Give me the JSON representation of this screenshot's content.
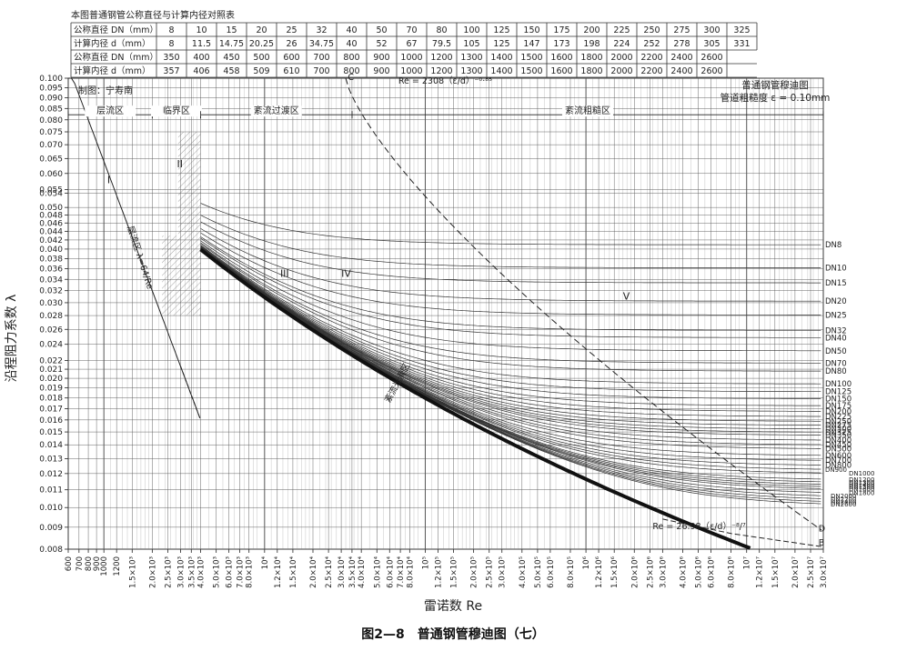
{
  "table": {
    "title": "本图普通钢管公称直径与计算内径对照表",
    "rows": [
      {
        "label": "公称直径 DN（mm）",
        "values": [
          "8",
          "10",
          "15",
          "20",
          "25",
          "32",
          "40",
          "50",
          "70",
          "80",
          "100",
          "125",
          "150",
          "175",
          "200",
          "225",
          "250",
          "275",
          "300",
          "325"
        ]
      },
      {
        "label": "计算内径 d（mm）",
        "values": [
          "8",
          "11.5",
          "14.75",
          "20.25",
          "26",
          "34.75",
          "40",
          "52",
          "67",
          "79.5",
          "105",
          "125",
          "147",
          "173",
          "198",
          "224",
          "252",
          "278",
          "305",
          "331"
        ]
      },
      {
        "label": "公称直径 DN（mm）",
        "values": [
          "350",
          "400",
          "450",
          "500",
          "600",
          "700",
          "800",
          "900",
          "1000",
          "1200",
          "1300",
          "1400",
          "1500",
          "1600",
          "1800",
          "2000",
          "2200",
          "2400",
          "2600",
          ""
        ]
      },
      {
        "label": "计算内径 d（mm）",
        "values": [
          "357",
          "406",
          "458",
          "509",
          "610",
          "700",
          "800",
          "900",
          "1000",
          "1200",
          "1300",
          "1400",
          "1500",
          "1600",
          "1800",
          "2000",
          "2200",
          "2400",
          "2600",
          ""
        ]
      }
    ]
  },
  "chart_data": {
    "type": "line",
    "title": "普通钢管穆迪图",
    "subtitle": "管道粗糙度 ε = 0.10mm",
    "author": "制图：宁寿南",
    "caption": "图2—8　普通钢管穆迪图（七）",
    "xlabel": "雷诺数 Re",
    "ylabel": "沿程阻力系数 λ",
    "x_scale": "log",
    "y_scale": "log",
    "xlim": [
      600,
      30000000
    ],
    "ylim": [
      0.008,
      0.1
    ],
    "grid": true,
    "x_ticks": [
      "600",
      "700",
      "800",
      "900",
      "1000",
      "1200",
      "1.5×10³",
      "2.0×10³",
      "2.5×10³",
      "3.0×10³",
      "3.5×10³",
      "4.0×10³",
      "5.0×10³",
      "6.0×10³",
      "7.0×10³",
      "8.0×10³",
      "10⁴",
      "1.2×10⁴",
      "1.5×10⁴",
      "2.0×10⁴",
      "2.5×10⁴",
      "3.0×10⁴",
      "3.5×10⁴",
      "4.0×10⁴",
      "5.0×10⁴",
      "6.0×10⁴",
      "7.0×10⁴",
      "8.0×10⁴",
      "10⁵",
      "1.2×10⁵",
      "1.5×10⁵",
      "2.0×10⁵",
      "2.5×10⁵",
      "3.0×10⁵",
      "4.0×10⁵",
      "5.0×10⁵",
      "6.0×10⁵",
      "8.0×10⁵",
      "10⁶",
      "1.2×10⁶",
      "1.5×10⁶",
      "2.0×10⁶",
      "2.5×10⁶",
      "3.0×10⁶",
      "4.0×10⁶",
      "5.0×10⁶",
      "6.0×10⁶",
      "8.0×10⁶",
      "10⁷",
      "1.2×10⁷",
      "1.5×10⁷",
      "2.0×10⁷",
      "2.5×10⁷",
      "3.0×10⁷"
    ],
    "x_tick_values": [
      600,
      700,
      800,
      900,
      1000,
      1200,
      1500,
      2000,
      2500,
      3000,
      3500,
      4000,
      5000,
      6000,
      7000,
      8000,
      10000,
      12000,
      15000,
      20000,
      25000,
      30000,
      35000,
      40000,
      50000,
      60000,
      70000,
      80000,
      100000,
      120000,
      150000,
      200000,
      250000,
      300000,
      400000,
      500000,
      600000,
      800000,
      1000000,
      1200000,
      1500000,
      2000000,
      2500000,
      3000000,
      4000000,
      5000000,
      6000000,
      8000000,
      10000000,
      12000000,
      15000000,
      20000000,
      25000000,
      30000000
    ],
    "y_ticks": [
      "0.100",
      "0.095",
      "0.090",
      "0.085",
      "0.080",
      "0.075",
      "0.070",
      "0.065",
      "0.060",
      "0.055",
      "0.054",
      "0.050",
      "0.048",
      "0.046",
      "0.044",
      "0.042",
      "0.040",
      "0.038",
      "0.036",
      "0.034",
      "0.032",
      "0.030",
      "0.028",
      "0.026",
      "0.024",
      "0.022",
      "0.021",
      "0.020",
      "0.019",
      "0.018",
      "0.017",
      "0.016",
      "0.015",
      "0.014",
      "0.013",
      "0.012",
      "0.011",
      "0.010",
      "0.009",
      "0.008"
    ],
    "y_tick_values": [
      0.1,
      0.095,
      0.09,
      0.085,
      0.08,
      0.075,
      0.07,
      0.065,
      0.06,
      0.055,
      0.054,
      0.05,
      0.048,
      0.046,
      0.044,
      0.042,
      0.04,
      0.038,
      0.036,
      0.034,
      0.032,
      0.03,
      0.028,
      0.026,
      0.024,
      0.022,
      0.021,
      0.02,
      0.019,
      0.018,
      0.017,
      0.016,
      0.015,
      0.014,
      0.013,
      0.012,
      0.011,
      0.01,
      0.009,
      0.008
    ],
    "regions": [
      {
        "label": "层流区",
        "x_from": 600,
        "x_to": 2000
      },
      {
        "label": "临界区",
        "x_from": 2000,
        "x_to": 4000
      },
      {
        "label": "紊流过渡区",
        "x_from": 4000,
        "x_to": 35000
      },
      {
        "label": "紊流粗糙区",
        "x_from": 35000,
        "x_to": 30000000
      }
    ],
    "zone_labels": [
      {
        "label": "I",
        "x": 1050,
        "y": 0.057
      },
      {
        "label": "II",
        "x": 2850,
        "y": 0.062
      },
      {
        "label": "III",
        "x": 12500,
        "y": 0.0345
      },
      {
        "label": "IV",
        "x": 30000,
        "y": 0.0345
      },
      {
        "label": "V",
        "x": 1700000,
        "y": 0.0305
      }
    ],
    "annotations": [
      {
        "text": "层流区 λ=64/Re",
        "x": 1400,
        "y": 0.045
      },
      {
        "text": "Re = 2308（ε/d）⁻⁰·⁸⁵",
        "x": 68000,
        "y": 0.097
      },
      {
        "text": "紊流光滑区",
        "x": 60000,
        "y": 0.0175
      },
      {
        "text": "Re = 26.98（ε/d）⁻⁸/⁷",
        "x": 2600000,
        "y": 0.0089
      },
      {
        "text": "C",
        "x": 33000,
        "y": 0.099
      },
      {
        "text": "D",
        "x": 28000000,
        "y": 0.0088
      },
      {
        "text": "B",
        "x": 28000000,
        "y": 0.00815
      }
    ],
    "laminar_line": {
      "equation": "λ = 64/Re",
      "x": [
        600,
        4000
      ],
      "y": [
        0.1067,
        0.016
      ]
    },
    "boundary_C": {
      "equation": "Re = 2308(ε/d)^-0.85",
      "x": [
        32000,
        30000000
      ],
      "y": [
        0.1,
        0.0088
      ]
    },
    "boundary_B": {
      "equation": "Re = 26.98(ε/d)^-8/7",
      "x": [
        3000000,
        30000000
      ],
      "y": [
        0.0094,
        0.0081
      ]
    },
    "roughness_mm": 0.1,
    "series": [
      {
        "name": "DN8",
        "d_mm": 8
      },
      {
        "name": "DN10",
        "d_mm": 11.5
      },
      {
        "name": "DN15",
        "d_mm": 14.75
      },
      {
        "name": "DN20",
        "d_mm": 20.25
      },
      {
        "name": "DN25",
        "d_mm": 26
      },
      {
        "name": "DN32",
        "d_mm": 34.75
      },
      {
        "name": "DN40",
        "d_mm": 40
      },
      {
        "name": "DN50",
        "d_mm": 52
      },
      {
        "name": "DN70",
        "d_mm": 67
      },
      {
        "name": "DN80",
        "d_mm": 79.5
      },
      {
        "name": "DN100",
        "d_mm": 105
      },
      {
        "name": "DN125",
        "d_mm": 125
      },
      {
        "name": "DN150",
        "d_mm": 147
      },
      {
        "name": "DN175",
        "d_mm": 173
      },
      {
        "name": "DN200",
        "d_mm": 198
      },
      {
        "name": "DN225",
        "d_mm": 224
      },
      {
        "name": "DN250",
        "d_mm": 252
      },
      {
        "name": "DN275",
        "d_mm": 278
      },
      {
        "name": "DN300",
        "d_mm": 305
      },
      {
        "name": "DN325",
        "d_mm": 331
      },
      {
        "name": "DN350",
        "d_mm": 357
      },
      {
        "name": "DN400",
        "d_mm": 406
      },
      {
        "name": "DN450",
        "d_mm": 458
      },
      {
        "name": "DN500",
        "d_mm": 509
      },
      {
        "name": "DN600",
        "d_mm": 610
      },
      {
        "name": "DN700",
        "d_mm": 700
      },
      {
        "name": "DN800",
        "d_mm": 800
      },
      {
        "name": "DN900",
        "d_mm": 900
      },
      {
        "name": "DN1000",
        "d_mm": 1000
      },
      {
        "name": "DN1200",
        "d_mm": 1200
      },
      {
        "name": "DN1300",
        "d_mm": 1300
      },
      {
        "name": "DN1400",
        "d_mm": 1400
      },
      {
        "name": "DN1500",
        "d_mm": 1500
      },
      {
        "name": "DN1600",
        "d_mm": 1600
      },
      {
        "name": "DN1800",
        "d_mm": 1800
      },
      {
        "name": "DN2000",
        "d_mm": 2000
      },
      {
        "name": "DN2200",
        "d_mm": 2200
      },
      {
        "name": "DN2400",
        "d_mm": 2400
      },
      {
        "name": "DN2600",
        "d_mm": 2600
      }
    ]
  }
}
